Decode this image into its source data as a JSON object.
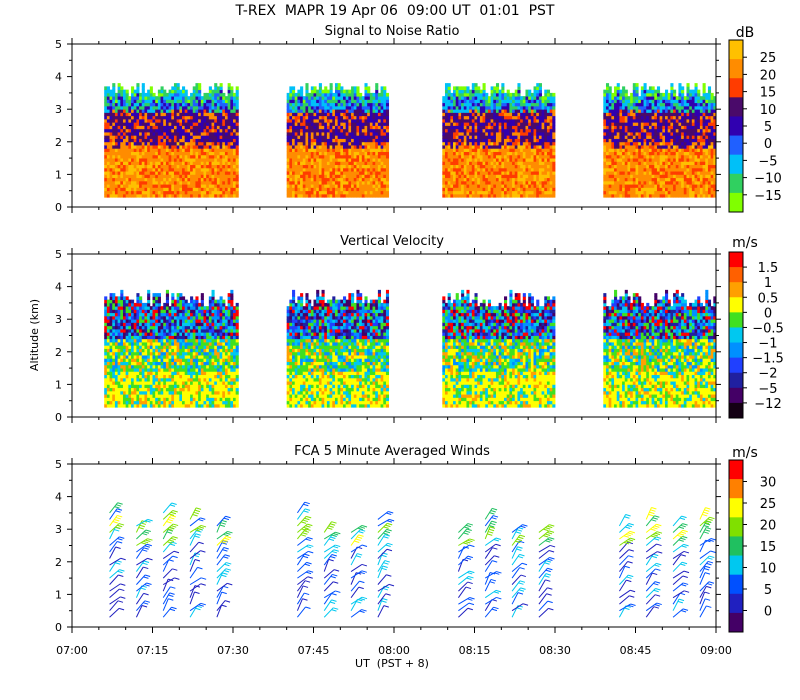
{
  "figure": {
    "title": "T-REX  MAPR 19 Apr 06  09:00 UT  01:01  PST",
    "ylabel": "Altitude (km)",
    "xlabel": "UT  (PST + 8)"
  },
  "chart_data": [
    {
      "type": "heatmap",
      "title": "Signal to Noise Ratio",
      "xlabel": "UT  (PST + 8)",
      "ylabel": "Altitude (km)",
      "xticks": [
        "07:00",
        "07:15",
        "07:30",
        "07:45",
        "08:00",
        "08:15",
        "08:30",
        "08:45",
        "09:00"
      ],
      "xlim_minutes": [
        420,
        540
      ],
      "yticks": [
        "0",
        "1",
        "2",
        "3",
        "4",
        "5"
      ],
      "ylim": [
        0,
        5
      ],
      "data_gaps_minutes": [
        [
          420,
          426
        ],
        [
          451,
          460
        ],
        [
          479,
          489
        ],
        [
          510,
          519
        ]
      ],
      "colorbar": {
        "unit": "dB",
        "labels": [
          "25",
          "20",
          "15",
          "10",
          "5",
          "0",
          "−5",
          "−10",
          "−15"
        ],
        "colors": [
          "#ffc000",
          "#ff8c00",
          "#ff3c00",
          "#4a0a6a",
          "#3000b0",
          "#2060ff",
          "#00c0f8",
          "#30d060",
          "#80ff00"
        ]
      },
      "profile_layers": [
        {
          "from_km": 0.3,
          "to_km": 1.8,
          "description": "orange/red high SNR, 15 to 25 dB"
        },
        {
          "from_km": 1.8,
          "to_km": 2.9,
          "description": "purple/blue, 5 to 15 dB"
        },
        {
          "from_km": 2.9,
          "to_km": 3.5,
          "description": "blue/cyan/green, -15 to 5 dB"
        }
      ]
    },
    {
      "type": "heatmap",
      "title": "Vertical Velocity",
      "ylabel": "Altitude (km)",
      "xticks": [
        "07:00",
        "07:15",
        "07:30",
        "07:45",
        "08:00",
        "08:15",
        "08:30",
        "08:45",
        "09:00"
      ],
      "yticks": [
        "0",
        "1",
        "2",
        "3",
        "4",
        "5"
      ],
      "ylim": [
        0,
        5
      ],
      "colorbar": {
        "unit": "m/s",
        "labels": [
          "1.5",
          "1",
          "0.5",
          "0",
          "−0.5",
          "−1",
          "−1.5",
          "−2",
          "−5",
          "−12"
        ],
        "colors": [
          "#ff0000",
          "#ff6000",
          "#ffa000",
          "#ffff00",
          "#40e020",
          "#00c8f0",
          "#0090ff",
          "#2040ff",
          "#2020a0",
          "#440066",
          "#140014"
        ]
      }
    },
    {
      "type": "scatter",
      "subtype": "wind barbs",
      "title": "FCA 5 Minute Averaged Winds",
      "xlabel": "UT  (PST + 8)",
      "ylabel": "Altitude (km)",
      "xticks": [
        "07:00",
        "07:15",
        "07:30",
        "07:45",
        "08:00",
        "08:15",
        "08:30",
        "08:45",
        "09:00"
      ],
      "yticks": [
        "0",
        "1",
        "2",
        "3",
        "4",
        "5"
      ],
      "ylim": [
        0,
        5
      ],
      "barb_times": [
        "07:07",
        "07:12",
        "07:17",
        "07:22",
        "07:27",
        "07:42",
        "07:47",
        "07:52",
        "07:57",
        "08:12",
        "08:17",
        "08:22",
        "08:27",
        "08:42",
        "08:47",
        "08:52",
        "08:57"
      ],
      "colorbar": {
        "unit": "m/s",
        "labels": [
          "30",
          "25",
          "20",
          "15",
          "10",
          "5",
          "0"
        ],
        "colors": [
          "#ff0000",
          "#ff8000",
          "#ffff00",
          "#80e000",
          "#20c060",
          "#00c8f0",
          "#0050ff",
          "#2020c0",
          "#440066"
        ]
      }
    }
  ]
}
